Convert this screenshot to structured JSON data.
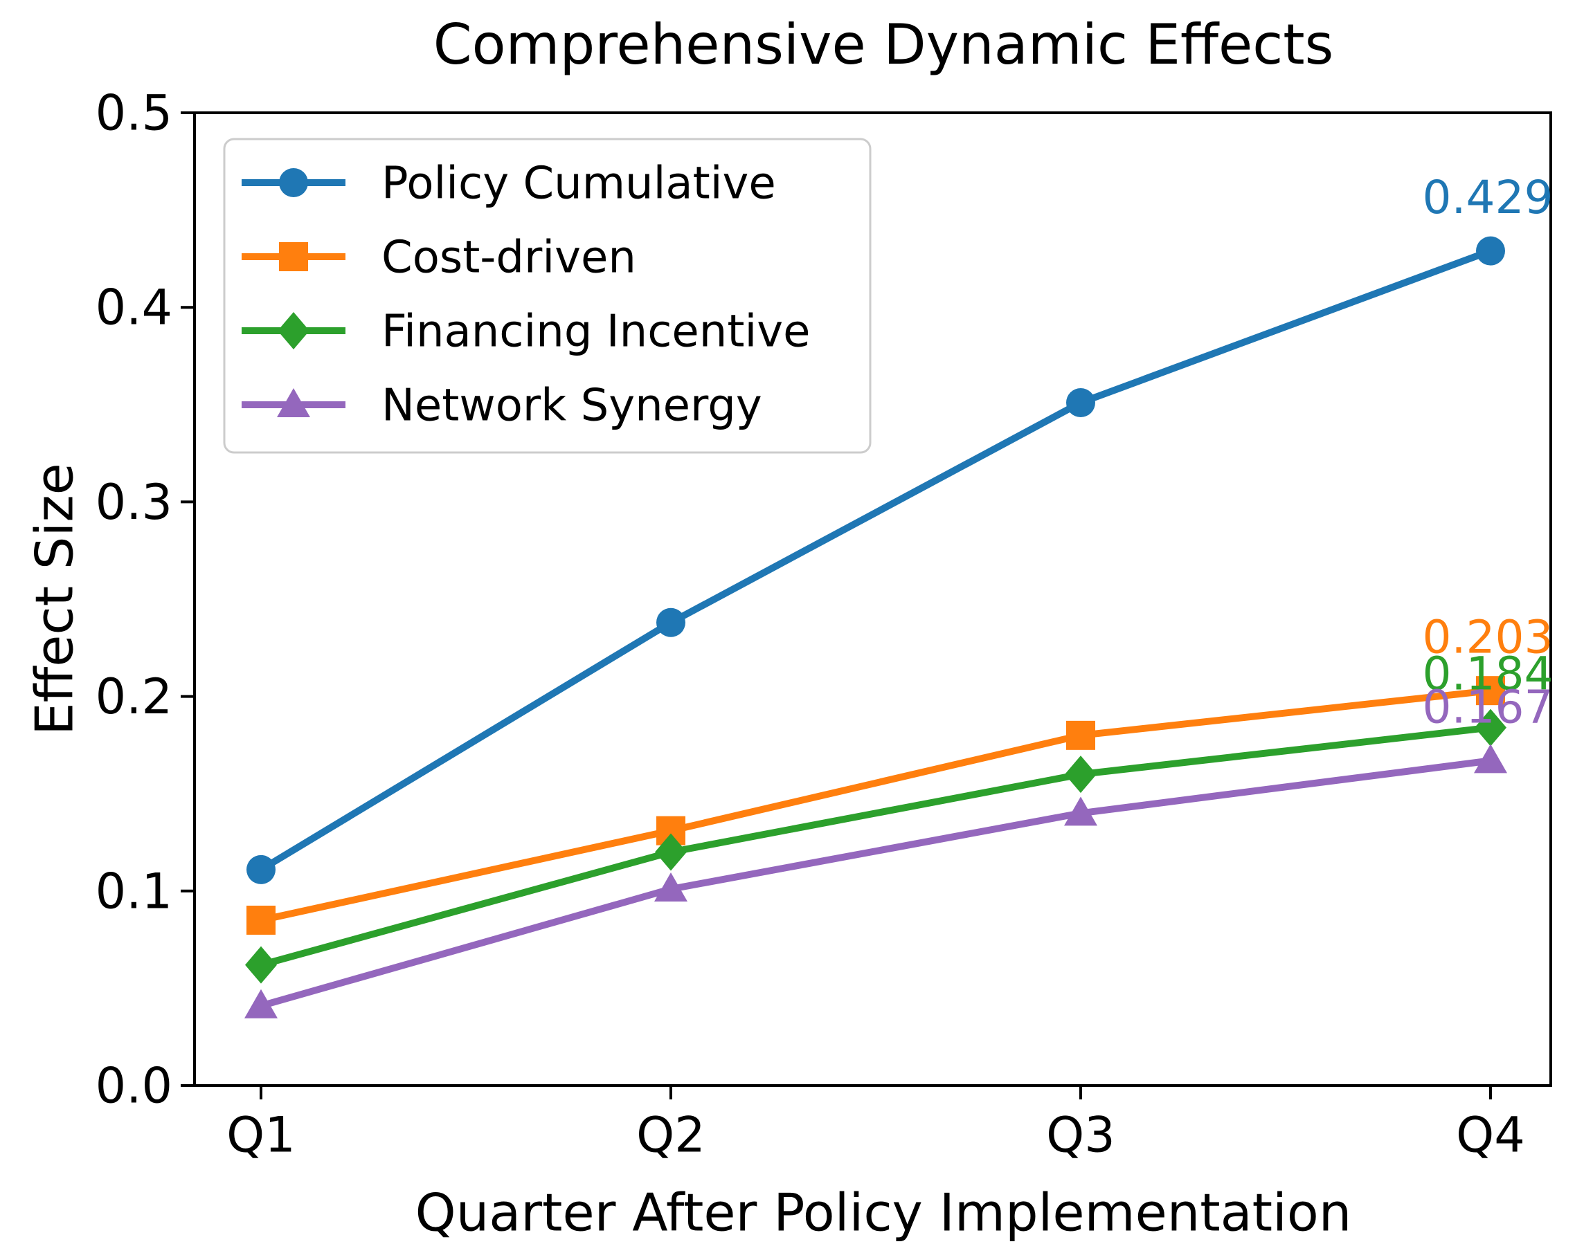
{
  "page": {
    "background": "#ffffff",
    "text_color": "#000000",
    "axis_color": "#000000",
    "legend_border_color": "#cccccc"
  },
  "chart_data": {
    "type": "line",
    "title": "Comprehensive Dynamic Effects",
    "xlabel": "Quarter After Policy Implementation",
    "ylabel": "Effect Size",
    "categories": [
      "Q1",
      "Q2",
      "Q3",
      "Q4"
    ],
    "ylim": [
      0.0,
      0.5
    ],
    "ytick_labels": [
      "0.0",
      "0.1",
      "0.2",
      "0.3",
      "0.4",
      "0.5"
    ],
    "grid": false,
    "legend_position": "upper left",
    "series": [
      {
        "name": "Policy Cumulative",
        "marker": "circle",
        "color": "#1f77b4",
        "values": [
          0.111,
          0.238,
          0.351,
          0.429
        ],
        "end_label": "0.429"
      },
      {
        "name": "Cost-driven",
        "marker": "square",
        "color": "#ff7f0e",
        "values": [
          0.085,
          0.131,
          0.18,
          0.203
        ],
        "end_label": "0.203"
      },
      {
        "name": "Financing Incentive",
        "marker": "diamond",
        "color": "#2ca02c",
        "values": [
          0.062,
          0.12,
          0.16,
          0.184
        ],
        "end_label": "0.184"
      },
      {
        "name": "Network Synergy",
        "marker": "triangle",
        "color": "#9467bd",
        "values": [
          0.041,
          0.101,
          0.14,
          0.167
        ],
        "end_label": "0.167"
      }
    ]
  }
}
